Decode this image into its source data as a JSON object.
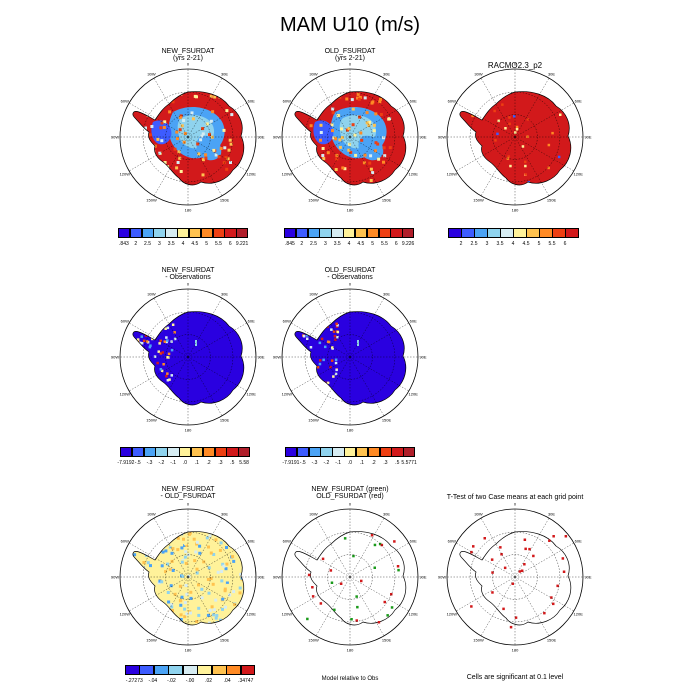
{
  "title": "MAM U10 (m/s)",
  "panels": [
    {
      "id": "p1",
      "title1": "NEW_FSURDAT",
      "title2": "(yrs 2-21)",
      "kind": "wind"
    },
    {
      "id": "p2",
      "title1": "OLD_FSURDAT",
      "title2": "(yrs 2-21)",
      "kind": "wind"
    },
    {
      "id": "p3",
      "title1": "RACMO2.3_p2",
      "title2": "",
      "kind": "obs"
    },
    {
      "id": "p4",
      "title1": "NEW_FSURDAT",
      "title2": "- Observations",
      "kind": "bias"
    },
    {
      "id": "p5",
      "title1": "OLD_FSURDAT",
      "title2": "- Observations",
      "kind": "bias"
    },
    {
      "id": "p7",
      "title1": "NEW_FSURDAT",
      "title2": "- OLD_FSURDAT",
      "kind": "diff"
    },
    {
      "id": "p8",
      "title1": "NEW_FSURDAT (green)",
      "title2": "OLD_FSURDAT (red)",
      "kind": "rel"
    },
    {
      "id": "p9",
      "title1": "T-Test of two Case means at each grid point",
      "title2": "",
      "kind": "ttest"
    }
  ],
  "lon_labels": [
    "0",
    "30E",
    "60E",
    "90E",
    "120E",
    "150E",
    "180",
    "150W",
    "120W",
    "90W",
    "60W",
    "30W"
  ],
  "colorbars": {
    "wind1": {
      "labels": [
        ".843",
        "2",
        "2.5",
        "3",
        "3.5",
        "4",
        "4.5",
        "5",
        "5.5",
        "6",
        "9.221"
      ]
    },
    "wind2": {
      "labels": [
        ".845",
        "2",
        "2.5",
        "3",
        "3.5",
        "4",
        "4.5",
        "5",
        "5.5",
        "6",
        "9.226"
      ]
    },
    "obs": {
      "labels": [
        "2",
        "2.5",
        "3",
        "3.5",
        "4",
        "4.5",
        "5",
        "5.5",
        "6"
      ]
    },
    "bias1": {
      "labels": [
        "-7.9192",
        "-.5",
        "-.3",
        "-.2",
        "-.1",
        ".0",
        ".1",
        ".2",
        ".3",
        ".5",
        "5.58"
      ]
    },
    "bias2": {
      "labels": [
        "-7.9191",
        "-.5",
        "-.3",
        "-.2",
        "-.1",
        ".0",
        ".1",
        ".2",
        ".3",
        ".5",
        "5.5771"
      ]
    },
    "diff": {
      "labels": [
        "-.27273",
        "-.04",
        "-.02",
        "-.00",
        ".02",
        ".04",
        ".34747"
      ]
    }
  },
  "colors": {
    "wind": [
      "#2a00e0",
      "#3d5cff",
      "#4ba3f5",
      "#8fd3ee",
      "#d6ecf2",
      "#fff29a",
      "#ffc24f",
      "#ff8a24",
      "#ee3f12",
      "#d2191b",
      "#b01e2a"
    ],
    "obs": [
      "#2a00e0",
      "#3d5cff",
      "#4ba3f5",
      "#8fd3ee",
      "#d6ecf2",
      "#fff29a",
      "#ffc24f",
      "#ff8a24",
      "#ee3f12",
      "#d2191b"
    ],
    "bias": [
      "#2a00e0",
      "#3d5cff",
      "#4ba3f5",
      "#8fd3ee",
      "#d6ecf2",
      "#fff29a",
      "#ffc24f",
      "#ff8a24",
      "#ee3f12",
      "#d2191b",
      "#b01e2a"
    ],
    "diff": [
      "#2a00e0",
      "#3d5cff",
      "#4ba3f5",
      "#8fd3ee",
      "#d6ecf2",
      "#fff29a",
      "#ffc24f",
      "#ff8a24",
      "#d2191b"
    ]
  },
  "notes": {
    "model_relative": "Model relative to Obs",
    "significance": "Cells are significant at 0.1 level"
  }
}
